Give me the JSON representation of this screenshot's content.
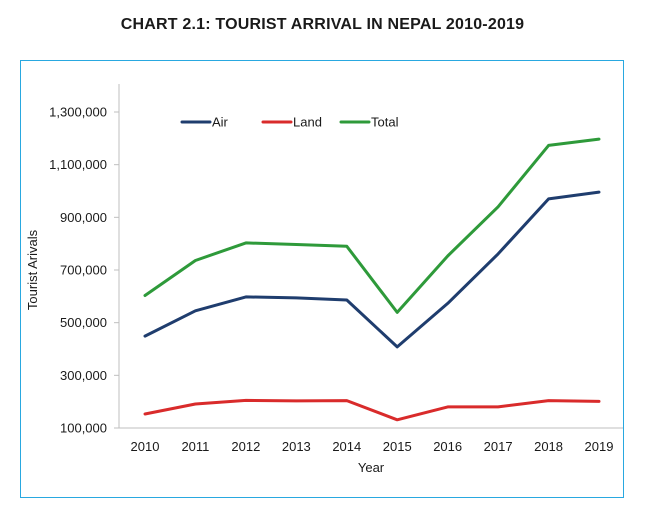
{
  "chart_data": {
    "type": "line",
    "title": "CHART 2.1: TOURIST ARRIVAL IN NEPAL 2010-2019",
    "xlabel": "Year",
    "ylabel": "Tourist Arivals",
    "categories": [
      "2010",
      "2011",
      "2012",
      "2013",
      "2014",
      "2015",
      "2016",
      "2017",
      "2018",
      "2019"
    ],
    "yticks": [
      100000,
      300000,
      500000,
      700000,
      900000,
      1100000,
      1300000
    ],
    "ytick_labels": [
      "100,000",
      "300,000",
      "500,000",
      "700,000",
      "900,000",
      "1,100,000",
      "1,300,000"
    ],
    "ylim": [
      100000,
      1300000
    ],
    "grid": false,
    "legend_position": "top-left",
    "series": [
      {
        "name": "Air",
        "color": "#1f3d6e",
        "values": [
          449000,
          545000,
          598000,
          594000,
          586000,
          408000,
          573000,
          761000,
          970000,
          996000
        ]
      },
      {
        "name": "Land",
        "color": "#d92b2b",
        "values": [
          153000,
          191000,
          205000,
          203000,
          204000,
          131000,
          180000,
          180000,
          204000,
          201000
        ]
      },
      {
        "name": "Total",
        "color": "#2e9a3a",
        "values": [
          603000,
          736000,
          803000,
          797000,
          790000,
          539000,
          753000,
          940000,
          1173000,
          1197000
        ]
      }
    ]
  }
}
